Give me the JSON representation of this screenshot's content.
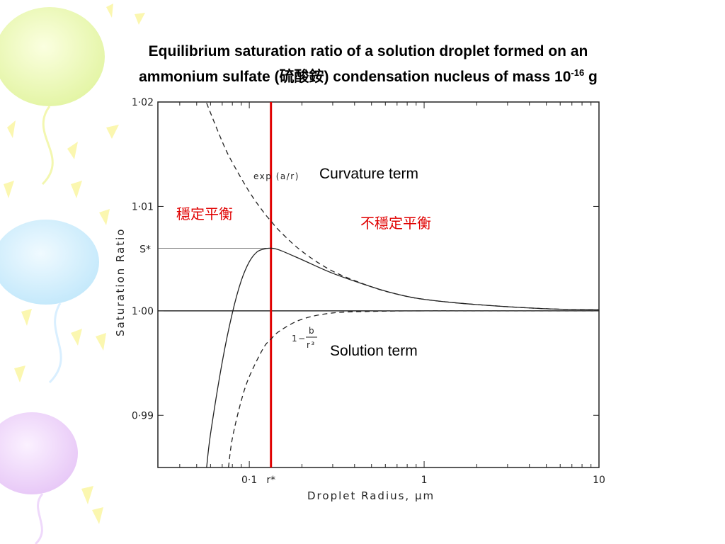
{
  "slide": {
    "title_line1": "Equilibrium saturation ratio of a solution droplet formed on an",
    "title_line2_pre": "ammonium sulfate (硫酸銨) condensation nucleus of mass 10",
    "title_sup": "-16",
    "title_line2_post": " g"
  },
  "chart_data": {
    "type": "line",
    "xlabel": "Droplet  Radius, μm",
    "ylabel": "Saturation  Ratio",
    "x_scale": "log",
    "xlim": [
      0.03,
      10
    ],
    "ylim": [
      0.985,
      1.02
    ],
    "x_ticks": [
      {
        "value": 0.1,
        "label": "0·1"
      },
      {
        "value": 1,
        "label": "1"
      },
      {
        "value": 10,
        "label": "10"
      }
    ],
    "x_marker": {
      "value": 0.133,
      "label": "r*"
    },
    "y_ticks": [
      {
        "value": 1.02,
        "label": "1·02"
      },
      {
        "value": 1.01,
        "label": "1·01"
      },
      {
        "value": 1.0,
        "label": "1·00"
      },
      {
        "value": 0.99,
        "label": "0·99"
      }
    ],
    "y_marker": {
      "value": 1.006,
      "label": "S*"
    },
    "series": [
      {
        "name": "exp (a/r)",
        "style": "dashed",
        "x": [
          0.057,
          0.07,
          0.08,
          0.1,
          0.12,
          0.133,
          0.15,
          0.2,
          0.3,
          0.5,
          0.7,
          1,
          2,
          5,
          10
        ],
        "y": [
          1.0199,
          1.0162,
          1.0142,
          1.0114,
          1.0095,
          1.0086,
          1.0076,
          1.0057,
          1.0038,
          1.0023,
          1.0016,
          1.0011,
          1.0006,
          1.0002,
          1.0001
        ]
      },
      {
        "name": "1 − b/r³",
        "style": "dashed",
        "x": [
          0.076,
          0.08,
          0.09,
          0.1,
          0.12,
          0.133,
          0.15,
          0.2,
          0.3,
          0.5,
          1,
          2,
          5,
          10
        ],
        "y": [
          0.985,
          0.9878,
          0.9914,
          0.9937,
          0.9964,
          0.9973,
          0.9981,
          0.9992,
          0.9998,
          0.99995,
          1.0,
          1.0,
          1.0,
          1.0
        ]
      },
      {
        "name": "",
        "style": "solid",
        "x": [
          0.057,
          0.06,
          0.07,
          0.08,
          0.09,
          0.1,
          0.11,
          0.12,
          0.133,
          0.15,
          0.2,
          0.3,
          0.5,
          0.7,
          1,
          2,
          5,
          10
        ],
        "y": [
          0.985,
          0.9882,
          0.9951,
          0.9998,
          1.0029,
          1.0047,
          1.0056,
          1.0059,
          1.006,
          1.0058,
          1.0049,
          1.0036,
          1.0023,
          1.0016,
          1.0011,
          1.0006,
          1.0002,
          1.0001
        ]
      }
    ],
    "reference_lines": [
      {
        "axis": "y",
        "value": 1.0,
        "style": "solid",
        "color": "#000000"
      },
      {
        "axis": "y",
        "value": 1.006,
        "style": "solid-thin",
        "color": "#555555",
        "span": "left-to-marker"
      },
      {
        "axis": "x",
        "value": 0.133,
        "style": "solid-thick",
        "color": "#e00000"
      }
    ],
    "annotations": {
      "exp_label": "exp (a/r)",
      "solution_numer": "b",
      "solution_prefix": "1−",
      "solution_denom": "r³",
      "curvature_term": "Curvature term",
      "solution_term": "Solution term",
      "stable": "穩定平衡",
      "unstable": "不穩定平衡"
    },
    "colors": {
      "accent": "#e00000",
      "ink": "#222222"
    }
  }
}
